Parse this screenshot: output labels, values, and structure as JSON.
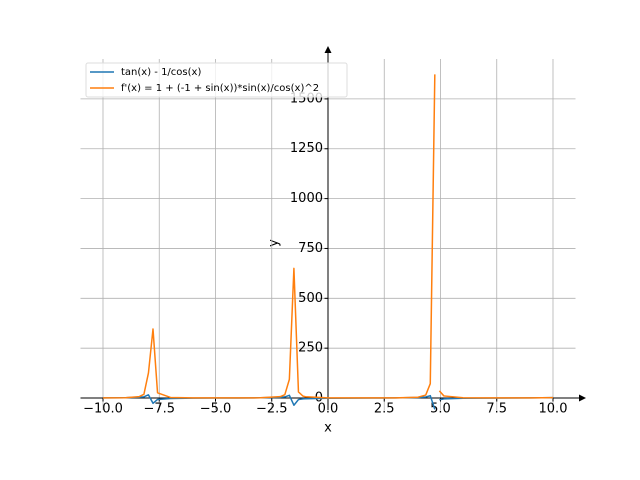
{
  "chart_data": {
    "type": "line",
    "x_label": "x",
    "y_label": "y",
    "x": [
      -10,
      -9,
      -8.3838,
      -8.1818,
      -7.9798,
      -7.7778,
      -7.5758,
      -7,
      -6,
      -5,
      -4,
      -3,
      -2.1212,
      -1.9192,
      -1.7172,
      -1.5152,
      -1.3131,
      -1.1111,
      -1,
      0,
      1,
      2,
      3,
      4,
      4.3434,
      4.5455,
      4.7475,
      4.85,
      4.9495,
      5.1515,
      6,
      7,
      8,
      9,
      10
    ],
    "series": [
      {
        "name": "tan(x) - 1/cos(x)",
        "color": "#1f77b4",
        "values": [
          0.54,
          1.55,
          3.68,
          6.03,
          15.9,
          -26.3,
          -7.1,
          -2.2,
          -0.75,
          -0.14,
          0.37,
          1.15,
          3.54,
          5.66,
          13.6,
          -36.1,
          -7.72,
          -4.27,
          -3.4,
          -1,
          -0.29,
          0.22,
          0.87,
          2.69,
          5.36,
          11.9,
          -57,
          null,
          -8.4,
          -4.48,
          -1.33,
          -0.46,
          0.07,
          0.65,
          1.84
        ]
      },
      {
        "name": "f'(x) = 1 + (-1 + sin(x))*sin(x)/cos(x)^2",
        "color": "#ff7f0e",
        "values": [
          0.65,
          1.7,
          7.29,
          18.7,
          126,
          346,
          26,
          2.92,
          0.78,
          0.51,
          0.57,
          1.16,
          6.78,
          16.6,
          93.5,
          650,
          30.3,
          9.6,
          6.29,
          1,
          0.54,
          0.52,
          0.88,
          4.12,
          14.9,
          72,
          1623,
          null,
          35.7,
          10.5,
          1.39,
          0.6,
          0.5,
          0.71,
          2.19
        ]
      }
    ],
    "xlim": [
      -11,
      11
    ],
    "ylim": [
      -60,
      1700
    ],
    "xticks": [
      {
        "value": -10,
        "label": "−10.0"
      },
      {
        "value": -7.5,
        "label": "−7.5"
      },
      {
        "value": -5,
        "label": "−5.0"
      },
      {
        "value": -2.5,
        "label": "−2.5"
      },
      {
        "value": 0,
        "label": "0.0"
      },
      {
        "value": 2.5,
        "label": "2.5"
      },
      {
        "value": 5,
        "label": "5.0"
      },
      {
        "value": 7.5,
        "label": "7.5"
      },
      {
        "value": 10,
        "label": "10.0"
      }
    ],
    "yticks": [
      0,
      250,
      500,
      750,
      1000,
      1250,
      1500
    ],
    "grid": true,
    "legend": "upper left"
  }
}
